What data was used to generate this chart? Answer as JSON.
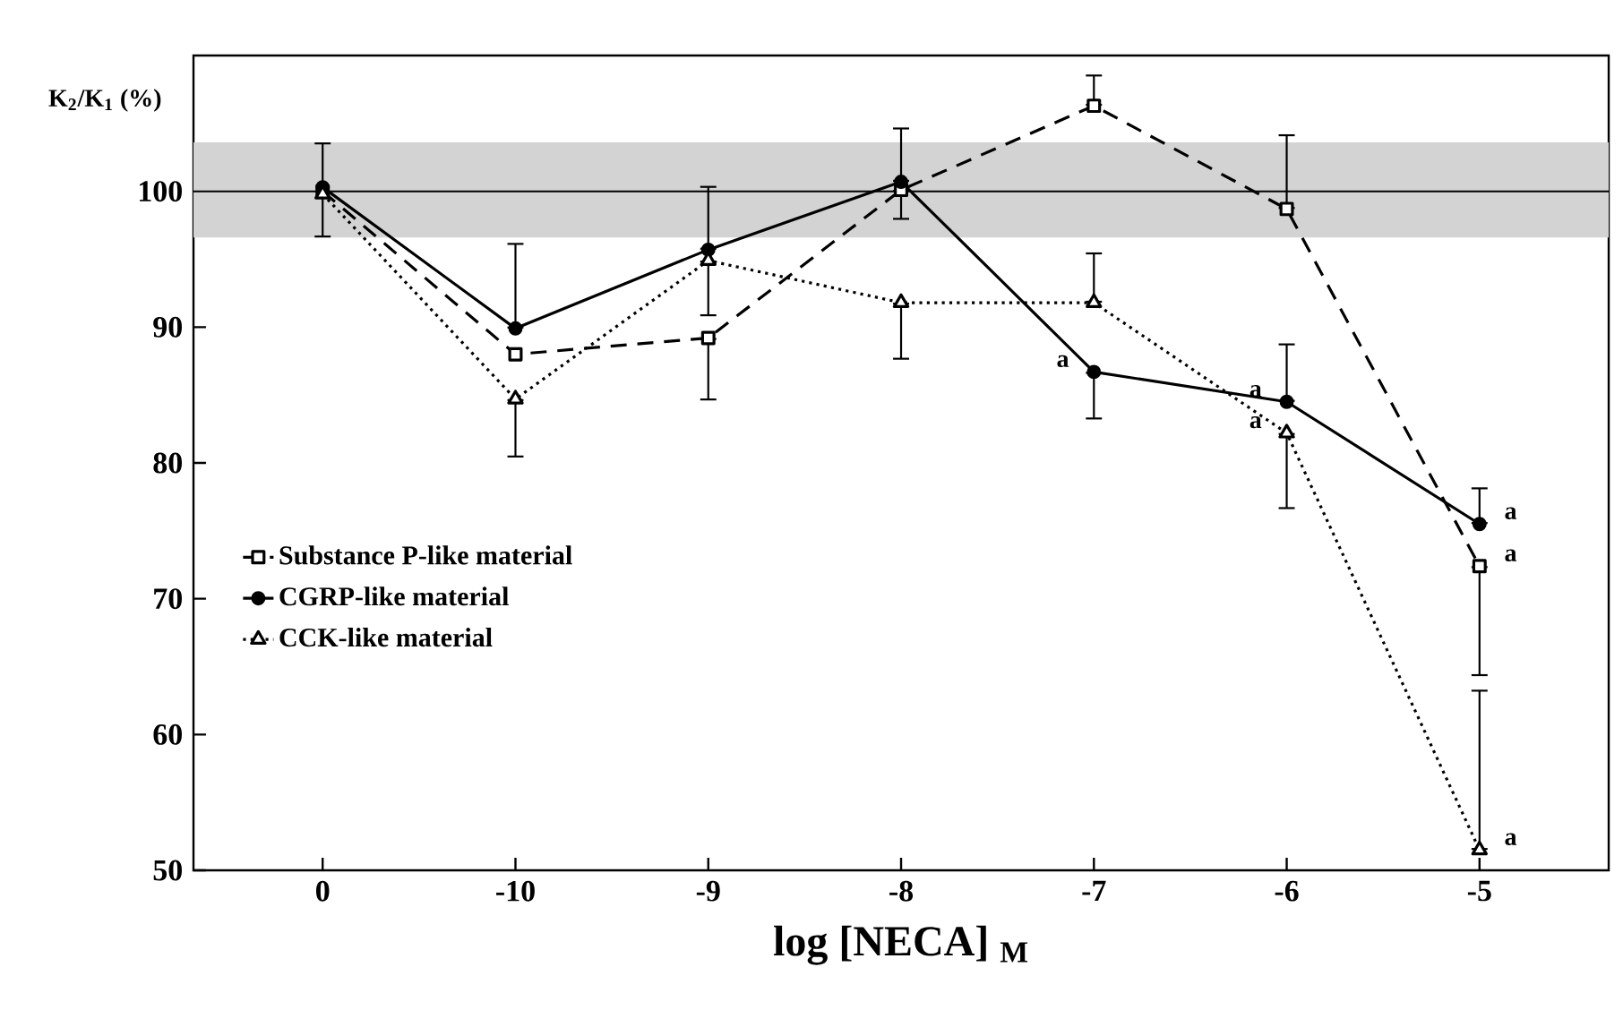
{
  "chart_data": {
    "type": "line",
    "xlabel": "log [NECA] $_{M}$",
    "ylabel": "K$_{2}$/K$_{1}$ (%)",
    "categories": [
      "0",
      "-10",
      "-9",
      "-8",
      "-7",
      "-6",
      "-5"
    ],
    "series": [
      {
        "name": "Substance P-like material",
        "color": "#000000",
        "marker": "square",
        "line_style": "dashed",
        "values": [
          100.0,
          88.0,
          89.2,
          100.1,
          106.3,
          98.7,
          72.4
        ],
        "errors": [
          null,
          null,
          [
            84.6,
            89.2
          ],
          [
            97.9,
            100.1
          ],
          [
            106.3,
            108.6
          ],
          [
            98.7,
            104.2
          ],
          [
            64.3,
            72.4
          ]
        ]
      },
      {
        "name": "CGRP-like material",
        "color": "#000000",
        "marker": "circle",
        "line_style": "solid",
        "values": [
          100.3,
          89.9,
          95.7,
          100.7,
          86.7,
          84.5,
          75.5
        ],
        "errors": [
          [
            96.6,
            103.6
          ],
          [
            89.9,
            96.2
          ],
          [
            95.7,
            100.4
          ],
          [
            100.7,
            104.7
          ],
          [
            83.2,
            86.7
          ],
          [
            84.5,
            88.8
          ],
          [
            75.5,
            78.2
          ]
        ]
      },
      {
        "name": "CCK-like material",
        "color": "#000000",
        "marker": "triangle",
        "line_style": "dotted",
        "values": [
          99.8,
          84.7,
          94.9,
          91.8,
          91.8,
          82.2,
          51.5
        ],
        "errors": [
          null,
          [
            80.4,
            84.7
          ],
          [
            90.8,
            94.9
          ],
          [
            87.6,
            91.8
          ],
          [
            91.8,
            95.5
          ],
          [
            76.6,
            82.2
          ],
          [
            51.5,
            63.3
          ]
        ]
      }
    ],
    "ylim": [
      50,
      110
    ],
    "yticks": [
      50,
      60,
      70,
      80,
      90,
      100
    ],
    "ref_lines": [
      {
        "axis": "y",
        "value": 100,
        "color": "#000000"
      }
    ],
    "bands": [
      {
        "axis": "y",
        "from": 96.6,
        "to": 103.6,
        "color": "#d3d3d3"
      }
    ],
    "annotations": [
      {
        "text": "a",
        "x": "-7",
        "y": 86.7
      },
      {
        "text": "a",
        "x": "-6",
        "y": 84.5
      },
      {
        "text": "a",
        "x": "-6",
        "y": 82.2
      },
      {
        "text": "a",
        "x": "-5",
        "y": 75.5
      },
      {
        "text": "a",
        "x": "-5",
        "y": 72.4
      },
      {
        "text": "a",
        "x": "-5",
        "y": 51.5
      }
    ],
    "legend": "bottom left",
    "grid": false
  }
}
